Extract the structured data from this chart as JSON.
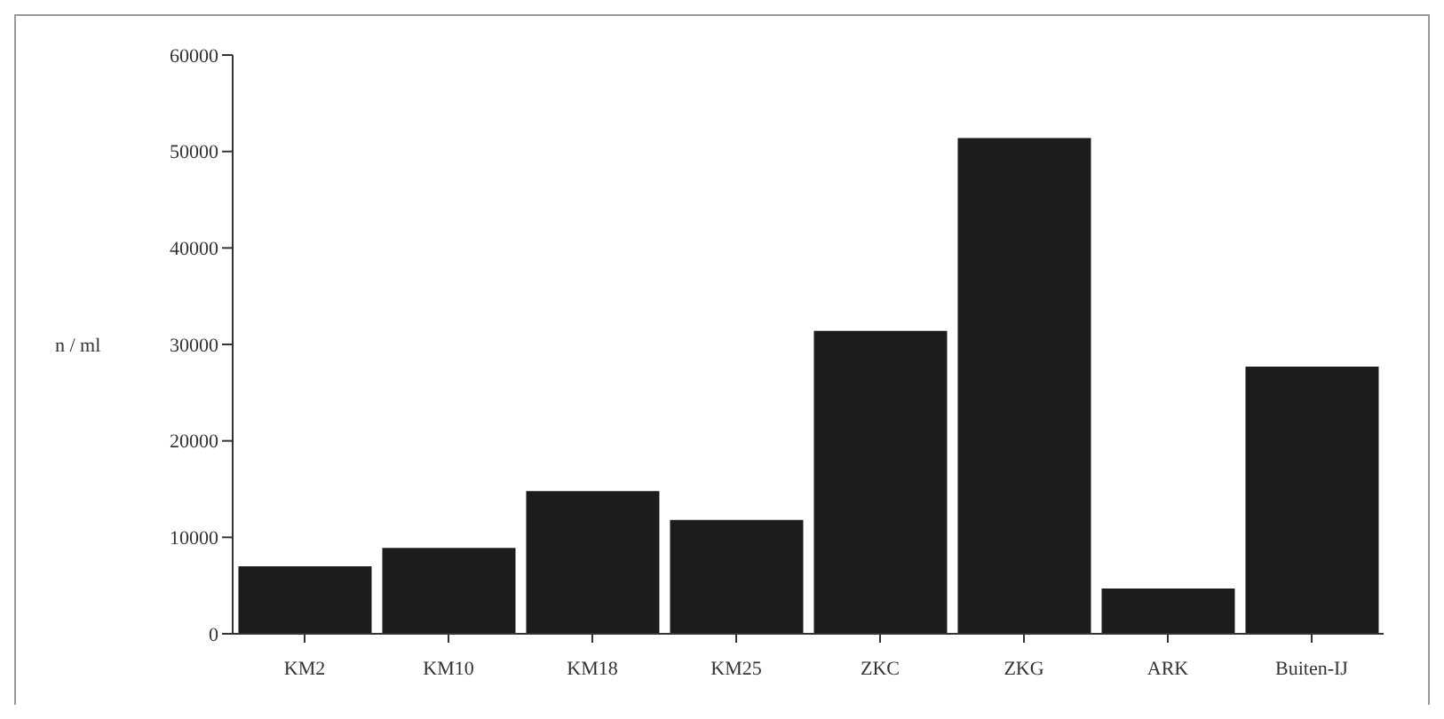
{
  "chart_data": {
    "type": "bar",
    "ylabel": "n / ml",
    "categories": [
      "KM2",
      "KM10",
      "KM18",
      "KM25",
      "ZKC",
      "ZKG",
      "ARK",
      "Buiten-IJ"
    ],
    "values": [
      7000,
      8900,
      14800,
      11800,
      31400,
      51400,
      4700,
      27700
    ],
    "color": "#1c1c1c",
    "ylim": [
      0,
      60000
    ],
    "yticks": [
      0,
      10000,
      20000,
      30000,
      40000,
      50000,
      60000
    ],
    "grid": false
  }
}
